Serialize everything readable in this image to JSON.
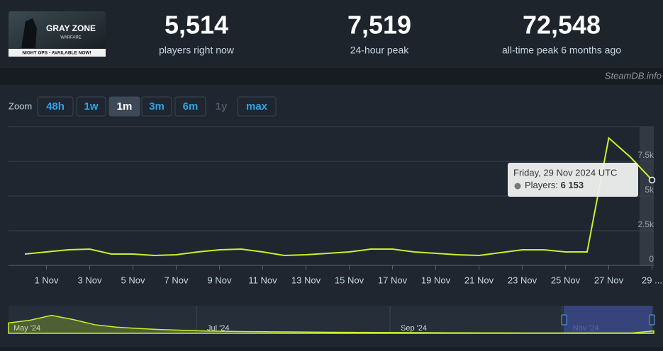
{
  "header": {
    "game_image": {
      "title": "GRAY ZONE",
      "subtitle": "WARFARE",
      "banner": "NIGHT OPS - AVAILABLE NOW!"
    },
    "stats": [
      {
        "value": "5,514",
        "label": "players right now"
      },
      {
        "value": "7,519",
        "label": "24-hour peak"
      },
      {
        "value": "72,548",
        "label": "all-time peak 6 months ago"
      }
    ],
    "source": "SteamDB.info"
  },
  "zoom": {
    "label": "Zoom",
    "options": [
      "48h",
      "1w",
      "1m",
      "3m",
      "6m",
      "1y",
      "max"
    ],
    "active": "1m",
    "disabled": "1y"
  },
  "chart_data": [
    {
      "type": "line",
      "categories": [
        null,
        "1 Nov",
        null,
        "3 Nov",
        null,
        "5 Nov",
        null,
        "7 Nov",
        null,
        "9 Nov",
        null,
        "11 Nov",
        null,
        "13 Nov",
        null,
        "15 Nov",
        null,
        "17 Nov",
        null,
        "19 Nov",
        null,
        "21 Nov",
        null,
        "23 Nov",
        null,
        "25 Nov",
        null,
        "27 Nov",
        null,
        "29 ..."
      ],
      "series": [
        {
          "color": "#c9f22b",
          "values": [
            816,
            969,
            1122,
            1173,
            816,
            816,
            714,
            765,
            969,
            1122,
            1173,
            969,
            714,
            765,
            867,
            969,
            1173,
            1173,
            969,
            867,
            765,
            714,
            918,
            1122,
            1122,
            969,
            969,
            9184,
            7806,
            6153
          ]
        }
      ],
      "ylim": [
        0,
        10000
      ],
      "yticks": [
        0,
        {
          "value": 2500,
          "label": "2.5k"
        },
        {
          "value": 5000,
          "label": "5k"
        },
        {
          "value": 7500,
          "label": "7.5k"
        }
      ],
      "grid": true,
      "tooltip": {
        "date": "Friday, 29 Nov 2024 UTC",
        "label": "Players:",
        "value_label": "6 153"
      }
    },
    {
      "type": "area",
      "categories": [
        "May '24",
        null,
        null,
        null,
        null,
        null,
        null,
        null,
        null,
        "Jul '24",
        null,
        null,
        null,
        null,
        null,
        null,
        null,
        null,
        "Sep '24",
        null,
        null,
        null,
        null,
        null,
        null,
        null,
        "Nov '24",
        null,
        null,
        null,
        null
      ],
      "color": "#c9f22b",
      "values": [
        30000,
        38000,
        52000,
        40000,
        25000,
        18000,
        14000,
        11000,
        9000,
        7000,
        6000,
        5000,
        4500,
        4000,
        3500,
        3000,
        2800,
        2500,
        2200,
        2000,
        1800,
        1500,
        1300,
        1200,
        1100,
        1000,
        1000,
        900,
        900,
        1000,
        7000
      ],
      "ylim": [
        0,
        80000
      ]
    }
  ]
}
